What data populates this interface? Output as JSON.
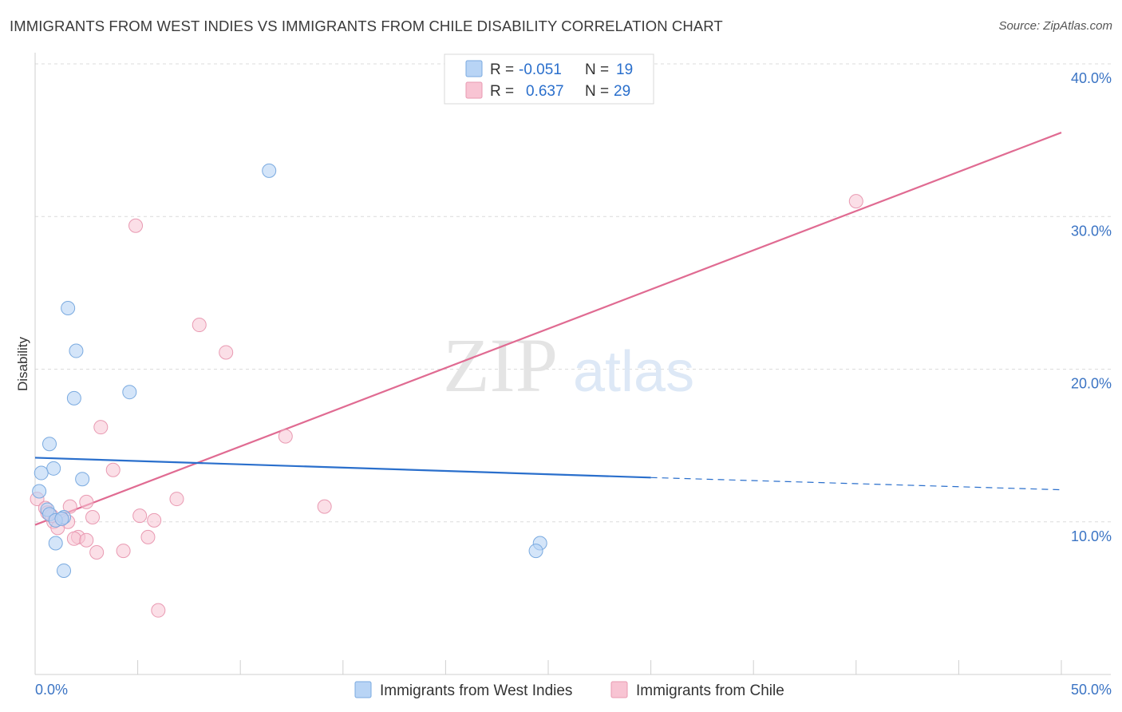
{
  "header": {
    "title": "IMMIGRANTS FROM WEST INDIES VS IMMIGRANTS FROM CHILE DISABILITY CORRELATION CHART",
    "source": "Source: ZipAtlas.com"
  },
  "watermark": {
    "zip": "ZIP",
    "atlas": "atlas"
  },
  "stats": [
    {
      "r_label": "R =",
      "r_value": "-0.051",
      "n_label": "N =",
      "n_value": "19"
    },
    {
      "r_label": "R =",
      "r_value": "0.637",
      "n_label": "N =",
      "n_value": "29"
    }
  ],
  "colors": {
    "blue_fill": "#b8d4f5",
    "blue_stroke": "#7aaae0",
    "blue_line": "#2a6fcc",
    "pink_fill": "#f8c4d3",
    "pink_stroke": "#e99ab2",
    "pink_line": "#e06b92",
    "tick_label": "#3b74c4",
    "value_text": "#2a6fcc"
  },
  "chart_data": {
    "type": "scatter",
    "title": "IMMIGRANTS FROM WEST INDIES VS IMMIGRANTS FROM CHILE DISABILITY CORRELATION CHART",
    "xlabel": "",
    "ylabel": "Disability",
    "xlim": [
      0,
      50
    ],
    "ylim": [
      0,
      40
    ],
    "x_tick_labels": [
      "0.0%",
      "50.0%"
    ],
    "y_ticks": [
      10,
      20,
      30,
      40
    ],
    "y_tick_labels": [
      "10.0%",
      "20.0%",
      "30.0%",
      "40.0%"
    ],
    "grid": true,
    "legend_position": "bottom",
    "series": [
      {
        "name": "Immigrants from West Indies",
        "color": "#7aaae0",
        "points": [
          [
            11.4,
            33.0
          ],
          [
            1.6,
            24.0
          ],
          [
            2.0,
            21.2
          ],
          [
            1.9,
            18.1
          ],
          [
            4.6,
            18.5
          ],
          [
            0.7,
            15.1
          ],
          [
            0.9,
            13.5
          ],
          [
            0.3,
            13.2
          ],
          [
            2.3,
            12.8
          ],
          [
            0.2,
            12.0
          ],
          [
            0.6,
            10.8
          ],
          [
            0.7,
            10.5
          ],
          [
            1.4,
            10.3
          ],
          [
            1.0,
            10.1
          ],
          [
            1.3,
            10.2
          ],
          [
            1.0,
            8.6
          ],
          [
            1.4,
            6.8
          ],
          [
            24.6,
            8.6
          ],
          [
            24.4,
            8.1
          ]
        ],
        "trend": {
          "x": [
            0,
            30
          ],
          "y": [
            14.2,
            12.9
          ]
        },
        "trend_extension": {
          "x": [
            30,
            50
          ],
          "y": [
            12.9,
            12.1
          ]
        }
      },
      {
        "name": "Immigrants from Chile",
        "color": "#e99ab2",
        "points": [
          [
            4.9,
            29.4
          ],
          [
            8.0,
            22.9
          ],
          [
            9.3,
            21.1
          ],
          [
            40.0,
            31.0
          ],
          [
            3.2,
            16.2
          ],
          [
            12.2,
            15.6
          ],
          [
            3.8,
            13.4
          ],
          [
            0.1,
            11.5
          ],
          [
            6.9,
            11.5
          ],
          [
            2.5,
            11.3
          ],
          [
            14.1,
            11.0
          ],
          [
            1.7,
            11.0
          ],
          [
            0.5,
            10.9
          ],
          [
            0.6,
            10.6
          ],
          [
            5.1,
            10.4
          ],
          [
            2.8,
            10.3
          ],
          [
            1.3,
            10.2
          ],
          [
            5.8,
            10.1
          ],
          [
            0.9,
            10.0
          ],
          [
            1.6,
            10.0
          ],
          [
            1.1,
            9.6
          ],
          [
            2.1,
            9.0
          ],
          [
            1.9,
            8.9
          ],
          [
            5.5,
            9.0
          ],
          [
            2.5,
            8.8
          ],
          [
            4.3,
            8.1
          ],
          [
            3.0,
            8.0
          ],
          [
            6.0,
            4.2
          ],
          [
            0.8,
            10.4
          ]
        ],
        "trend": {
          "x": [
            0,
            50
          ],
          "y": [
            9.8,
            35.5
          ]
        }
      }
    ]
  }
}
